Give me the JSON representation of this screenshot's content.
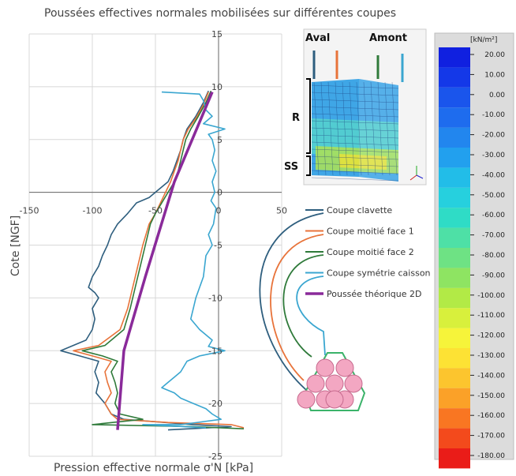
{
  "chart_data": {
    "type": "line",
    "title": "Poussées effectives normales mobilisées sur différentes coupes",
    "xlabel": "Pression effective normale σ'N [kPa]",
    "ylabel": "Cote [NGF]",
    "xlim": [
      -150,
      50
    ],
    "ylim": [
      -25,
      15
    ],
    "xticks": [
      -150,
      -100,
      -50,
      0,
      50
    ],
    "yticks": [
      15,
      10,
      5,
      0,
      -5,
      -10,
      -15,
      -20,
      -25
    ],
    "grid": true,
    "series": [
      {
        "name": "Coupe clavette",
        "color": "#2e5e7e",
        "points": [
          [
            -8,
            9.6
          ],
          [
            -12,
            8.5
          ],
          [
            -18,
            7.2
          ],
          [
            -25,
            6
          ],
          [
            -28,
            5
          ],
          [
            -30,
            4
          ],
          [
            -33,
            3
          ],
          [
            -36,
            2
          ],
          [
            -40,
            1
          ],
          [
            -45,
            0.5
          ],
          [
            -55,
            -0.5
          ],
          [
            -65,
            -1
          ],
          [
            -72,
            -2
          ],
          [
            -80,
            -3
          ],
          [
            -85,
            -4
          ],
          [
            -88,
            -5
          ],
          [
            -92,
            -6
          ],
          [
            -95,
            -7
          ],
          [
            -100,
            -8
          ],
          [
            -103,
            -9
          ],
          [
            -98,
            -9.5
          ],
          [
            -95,
            -10
          ],
          [
            -100,
            -11
          ],
          [
            -98,
            -12
          ],
          [
            -100,
            -13
          ],
          [
            -105,
            -14
          ],
          [
            -125,
            -15
          ],
          [
            -110,
            -15.5
          ],
          [
            -95,
            -16
          ],
          [
            -98,
            -17
          ],
          [
            -95,
            -18
          ],
          [
            -97,
            -19
          ],
          [
            -90,
            -20
          ],
          [
            -85,
            -21
          ],
          [
            -75,
            -21.5
          ],
          [
            -20,
            -22
          ],
          [
            10,
            -22.2
          ],
          [
            -40,
            -22.5
          ]
        ]
      },
      {
        "name": "Coupe moitié face 1",
        "color": "#e8733a",
        "points": [
          [
            -8,
            9.5
          ],
          [
            -12,
            8.3
          ],
          [
            -18,
            7
          ],
          [
            -24,
            6
          ],
          [
            -28,
            5
          ],
          [
            -30,
            4
          ],
          [
            -32,
            3
          ],
          [
            -35,
            2
          ],
          [
            -38,
            1
          ],
          [
            -42,
            0
          ],
          [
            -46,
            -1
          ],
          [
            -50,
            -2
          ],
          [
            -55,
            -3
          ],
          [
            -60,
            -5
          ],
          [
            -64,
            -7
          ],
          [
            -68,
            -9
          ],
          [
            -72,
            -11
          ],
          [
            -78,
            -13
          ],
          [
            -95,
            -14.5
          ],
          [
            -115,
            -15
          ],
          [
            -100,
            -15.5
          ],
          [
            -85,
            -16
          ],
          [
            -90,
            -17
          ],
          [
            -88,
            -18
          ],
          [
            -85,
            -19
          ],
          [
            -90,
            -20
          ],
          [
            -85,
            -21
          ],
          [
            -80,
            -21.5
          ],
          [
            -40,
            -21.8
          ],
          [
            10,
            -22
          ],
          [
            20,
            -22.3
          ]
        ]
      },
      {
        "name": "Coupe moitié face 2",
        "color": "#2f7a3a",
        "points": [
          [
            -6,
            9.6
          ],
          [
            -10,
            8.5
          ],
          [
            -16,
            7.2
          ],
          [
            -22,
            6
          ],
          [
            -26,
            5
          ],
          [
            -28,
            4
          ],
          [
            -30,
            3
          ],
          [
            -32,
            2
          ],
          [
            -35,
            1
          ],
          [
            -40,
            0
          ],
          [
            -45,
            -1
          ],
          [
            -50,
            -2
          ],
          [
            -54,
            -3
          ],
          [
            -58,
            -5
          ],
          [
            -62,
            -7
          ],
          [
            -66,
            -9
          ],
          [
            -70,
            -11
          ],
          [
            -75,
            -13
          ],
          [
            -90,
            -14.5
          ],
          [
            -108,
            -15
          ],
          [
            -92,
            -15.5
          ],
          [
            -80,
            -16
          ],
          [
            -85,
            -17
          ],
          [
            -82,
            -18
          ],
          [
            -80,
            -19
          ],
          [
            -82,
            -20
          ],
          [
            -78,
            -21
          ],
          [
            -60,
            -21.5
          ],
          [
            -100,
            -22
          ],
          [
            -20,
            -22.2
          ],
          [
            20,
            -22.4
          ]
        ]
      },
      {
        "name": "Coupe symétrie caisson",
        "color": "#3aa6d0",
        "points": [
          [
            -45,
            9.5
          ],
          [
            -15,
            9.3
          ],
          [
            -12,
            8.7
          ],
          [
            -10,
            7.8
          ],
          [
            -5,
            7.2
          ],
          [
            -12,
            6.5
          ],
          [
            5,
            6
          ],
          [
            -8,
            5.5
          ],
          [
            -5,
            5
          ],
          [
            -3,
            4
          ],
          [
            -5,
            3
          ],
          [
            -2,
            2
          ],
          [
            -5,
            1
          ],
          [
            -3,
            0
          ],
          [
            -6,
            -0.8
          ],
          [
            -2,
            -1.5
          ],
          [
            -4,
            -3
          ],
          [
            -8,
            -4
          ],
          [
            -5,
            -5
          ],
          [
            -10,
            -6
          ],
          [
            -12,
            -8
          ],
          [
            -15,
            -9
          ],
          [
            -18,
            -10
          ],
          [
            -20,
            -11
          ],
          [
            -22,
            -12
          ],
          [
            -15,
            -13
          ],
          [
            -5,
            -14
          ],
          [
            -8,
            -14.6
          ],
          [
            5,
            -15
          ],
          [
            -15,
            -15.5
          ],
          [
            -25,
            -16
          ],
          [
            -30,
            -17
          ],
          [
            -35,
            -17.5
          ],
          [
            -40,
            -18
          ],
          [
            -45,
            -18.5
          ],
          [
            -35,
            -19
          ],
          [
            -30,
            -19.5
          ],
          [
            -20,
            -20
          ],
          [
            -10,
            -20.5
          ],
          [
            -5,
            -21
          ],
          [
            2,
            -21.5
          ],
          [
            -30,
            -22
          ],
          [
            -60,
            -22
          ],
          [
            -10,
            -22.3
          ]
        ]
      },
      {
        "name": "Poussée théorique 2D",
        "color": "#8a2a9a",
        "points": [
          [
            -5,
            9.5
          ],
          [
            -35,
            1
          ],
          [
            -58,
            -8
          ],
          [
            -75,
            -15
          ],
          [
            -80,
            -22.5
          ]
        ]
      }
    ]
  },
  "inset": {
    "labels": {
      "aval": "Aval",
      "amont": "Amont",
      "r": "R",
      "ss": "SS"
    },
    "cut_colors": [
      "#2e5e7e",
      "#e8733a",
      "#2f7a3a",
      "#3aa6d0"
    ]
  },
  "colorbar": {
    "unit": "[kN/m²]",
    "ticks": [
      "20.00",
      "10.00",
      "0.00",
      "-10.00",
      "-20.00",
      "-30.00",
      "-40.00",
      "-50.00",
      "-60.00",
      "-70.00",
      "-80.00",
      "-90.00",
      "-100.00",
      "-110.00",
      "-120.00",
      "-130.00",
      "-140.00",
      "-150.00",
      "-160.00",
      "-170.00",
      "-180.00"
    ],
    "colors": [
      "#1020e0",
      "#1438e8",
      "#1a55ec",
      "#1e6cee",
      "#2286ee",
      "#22a0ee",
      "#22bde8",
      "#26d0de",
      "#2fdcc6",
      "#4ee0a6",
      "#6ee284",
      "#8ee462",
      "#b2ea46",
      "#d8f03c",
      "#f6f43a",
      "#fde234",
      "#fcc52e",
      "#fba128",
      "#f97622",
      "#f34a1c",
      "#ea1c18"
    ]
  },
  "legend": {
    "position": "right of plot",
    "entries": [
      "Coupe clavette",
      "Coupe moitié face 1",
      "Coupe moitié face 2",
      "Coupe symétrie caisson",
      "Poussée théorique 2D"
    ]
  },
  "bundle": {
    "fill": "#f3a7c2",
    "outline": "#3bb36a"
  }
}
